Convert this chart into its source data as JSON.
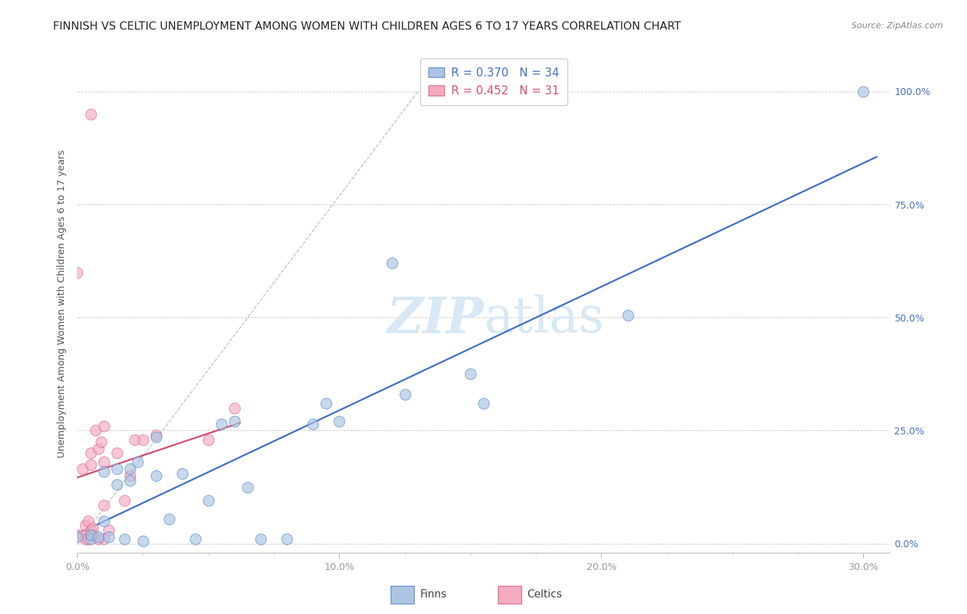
{
  "title": "FINNISH VS CELTIC UNEMPLOYMENT AMONG WOMEN WITH CHILDREN AGES 6 TO 17 YEARS CORRELATION CHART",
  "source": "Source: ZipAtlas.com",
  "ylabel": "Unemployment Among Women with Children Ages 6 to 17 years",
  "xlim": [
    0.0,
    0.31
  ],
  "ylim": [
    -0.02,
    1.08
  ],
  "finns_color": "#aac4e2",
  "celtics_color": "#f5aabf",
  "finns_edge_color": "#5588cc",
  "celtics_edge_color": "#dd6688",
  "finns_line_color": "#4472c4",
  "celtics_line_color": "#d45070",
  "ref_line_color": "#bbbbbb",
  "watermark_color": "#d8e8f5",
  "legend_finns_R": "R = 0.370",
  "legend_finns_N": "N = 34",
  "legend_celtics_R": "R = 0.452",
  "legend_celtics_N": "N = 31",
  "finns_x": [
    0.0,
    0.005,
    0.005,
    0.008,
    0.01,
    0.01,
    0.012,
    0.015,
    0.015,
    0.018,
    0.02,
    0.02,
    0.023,
    0.025,
    0.03,
    0.03,
    0.035,
    0.04,
    0.045,
    0.05,
    0.055,
    0.06,
    0.065,
    0.07,
    0.08,
    0.09,
    0.095,
    0.1,
    0.12,
    0.125,
    0.15,
    0.155,
    0.21,
    0.3
  ],
  "finns_y": [
    0.015,
    0.01,
    0.02,
    0.015,
    0.05,
    0.16,
    0.015,
    0.13,
    0.165,
    0.01,
    0.14,
    0.165,
    0.18,
    0.005,
    0.15,
    0.235,
    0.055,
    0.155,
    0.01,
    0.095,
    0.265,
    0.27,
    0.125,
    0.01,
    0.01,
    0.265,
    0.31,
    0.27,
    0.62,
    0.33,
    0.375,
    0.31,
    0.505,
    1.0
  ],
  "celtics_x": [
    0.0,
    0.0,
    0.002,
    0.002,
    0.003,
    0.003,
    0.004,
    0.004,
    0.005,
    0.005,
    0.005,
    0.005,
    0.006,
    0.006,
    0.007,
    0.008,
    0.008,
    0.009,
    0.01,
    0.01,
    0.01,
    0.01,
    0.012,
    0.015,
    0.018,
    0.02,
    0.022,
    0.025,
    0.03,
    0.05,
    0.06
  ],
  "celtics_y": [
    0.02,
    0.6,
    0.02,
    0.165,
    0.01,
    0.04,
    0.01,
    0.05,
    0.03,
    0.175,
    0.2,
    0.95,
    0.02,
    0.035,
    0.25,
    0.01,
    0.21,
    0.225,
    0.01,
    0.085,
    0.18,
    0.26,
    0.03,
    0.2,
    0.095,
    0.15,
    0.23,
    0.23,
    0.24,
    0.23,
    0.3
  ],
  "marker_size": 130,
  "marker_alpha": 0.65,
  "title_fontsize": 11.5,
  "axis_label_fontsize": 10,
  "tick_fontsize": 10,
  "source_fontsize": 9,
  "background_color": "#ffffff",
  "grid_color": "#cccccc"
}
